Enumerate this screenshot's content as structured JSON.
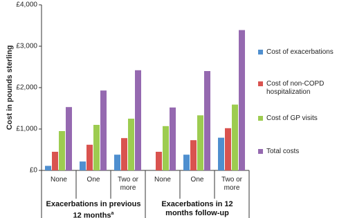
{
  "chart_data": {
    "type": "bar",
    "y_axis_label": "Cost in pounds sterling",
    "categories": [
      "None",
      "One",
      "Two or more",
      "None",
      "One",
      "Two or more"
    ],
    "groups": [
      {
        "name": "Exacerbations in previous 12 months",
        "superscript": "a"
      },
      {
        "name": "Exacerbations in 12 months follow-up"
      }
    ],
    "series": [
      {
        "name": "Cost of exacerbations",
        "color": "#4f8fcf",
        "values": [
          110,
          215,
          380,
          0,
          380,
          790
        ]
      },
      {
        "name": "Cost of non-COPD hospitalization",
        "color": "#d9534f",
        "values": [
          450,
          620,
          780,
          450,
          730,
          1020
        ]
      },
      {
        "name": "Cost of GP visits",
        "color": "#9dcc50",
        "values": [
          950,
          1100,
          1250,
          1070,
          1330,
          1590
        ]
      },
      {
        "name": "Total costs",
        "color": "#9569b0",
        "values": [
          1530,
          1930,
          2420,
          1520,
          2400,
          3390
        ]
      }
    ],
    "ylim": [
      0,
      4000
    ],
    "yticks": [
      {
        "value": 0,
        "label": "£0"
      },
      {
        "value": 1000,
        "label": "£1,000"
      },
      {
        "value": 2000,
        "label": "£2,000"
      },
      {
        "value": 3000,
        "label": "£3,000"
      },
      {
        "value": 4000,
        "label": "£4,000"
      }
    ],
    "grid": false
  }
}
